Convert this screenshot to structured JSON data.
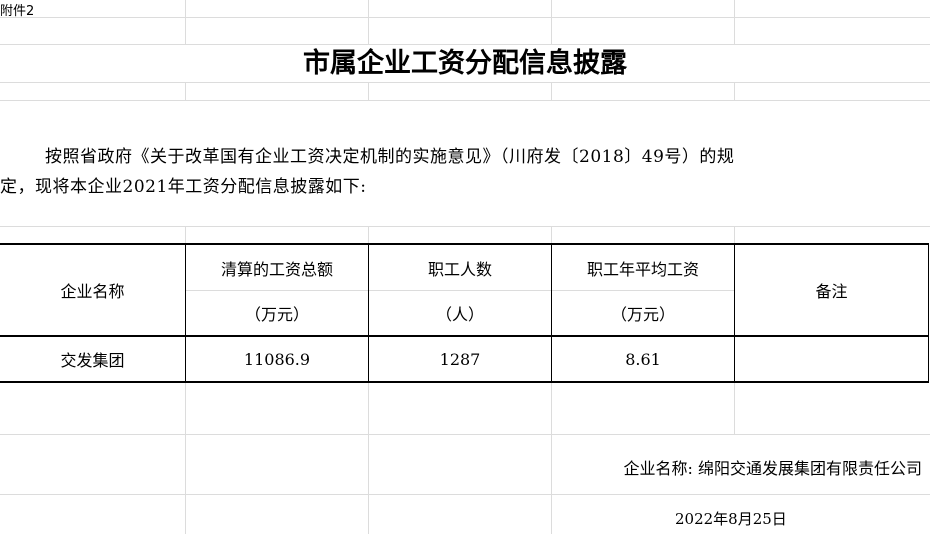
{
  "attachment_label": "附件2",
  "title": "市属企业工资分配信息披露",
  "intro_line1": "按照省政府《关于改革国有企业工资决定机制的实施意见》（川府发〔2018〕49号）的规",
  "intro_line2": "定，现将本企业2021年工资分配信息披露如下:",
  "table": {
    "headers": [
      {
        "line1": "企业名称",
        "line2": ""
      },
      {
        "line1": "清算的工资总额",
        "line2": "（万元）"
      },
      {
        "line1": "职工人数",
        "line2": "（人）"
      },
      {
        "line1": "职工年平均工资",
        "line2": "（万元）"
      },
      {
        "line1": "备注",
        "line2": ""
      }
    ],
    "rows": [
      [
        "交发集团",
        "11086.9",
        "1287",
        "8.61",
        ""
      ]
    ]
  },
  "company_name": "企业名称: 绵阳交通发展集团有限责任公司",
  "date": "2022年8月25日"
}
